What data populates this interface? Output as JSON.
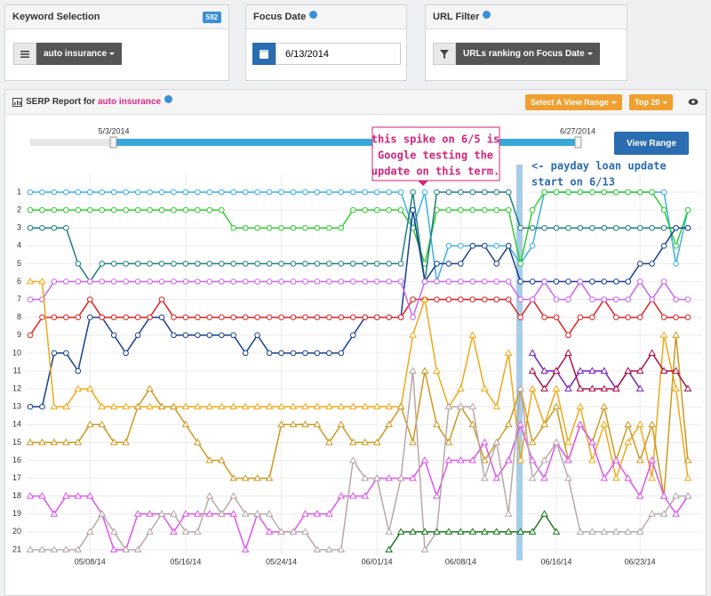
{
  "keyword_panel": {
    "title": "Keyword Selection",
    "count": 592,
    "keyword": "auto insurance"
  },
  "focus_panel": {
    "title": "Focus Date",
    "date": "6/13/2014"
  },
  "url_panel": {
    "title": "URL Filter",
    "filter": "URLs ranking on Focus Date"
  },
  "report": {
    "title_prefix": "SERP Report for",
    "keyword": "auto insurance",
    "range_button": "Select A View Range",
    "top_button": "Top 20",
    "range_start": "5/3/2014",
    "range_end": "6/27/2014",
    "apply_button": "View Range"
  },
  "chart_data": {
    "type": "line",
    "categories": [
      null,
      null,
      null,
      null,
      null,
      "05/08/14",
      null,
      null,
      null,
      null,
      null,
      null,
      null,
      "05/16/14",
      null,
      null,
      null,
      null,
      null,
      null,
      null,
      "05/24/14",
      null,
      null,
      null,
      null,
      null,
      null,
      null,
      "06/01/14",
      null,
      null,
      null,
      null,
      null,
      null,
      "06/08/14",
      null,
      null,
      null,
      null,
      null,
      null,
      null,
      "06/16/14",
      null,
      null,
      null,
      null,
      null,
      null,
      "06/23/14",
      null,
      null,
      null,
      null
    ],
    "ylim": [
      21.5,
      0.5
    ],
    "yticks": [
      1,
      2,
      3,
      4,
      5,
      6,
      7,
      8,
      9,
      10,
      11,
      12,
      13,
      14,
      15,
      16,
      17,
      18,
      19,
      20,
      21
    ],
    "grid": true,
    "annotations": [
      {
        "lines": [
          "this spike on 6/5 is",
          "Google testing the",
          "update on this term."
        ],
        "color": "#d0257a"
      },
      {
        "lines": [
          "<- payday loan update",
          "start on 6/13"
        ],
        "color": "#2a6db0"
      }
    ],
    "series": [
      {
        "color": "#3ab0e2",
        "marker": "circle",
        "values": [
          1,
          1,
          1,
          1,
          1,
          1,
          1,
          1,
          1,
          1,
          1,
          1,
          1,
          1,
          1,
          1,
          1,
          1,
          1,
          1,
          1,
          1,
          1,
          1,
          1,
          1,
          1,
          1,
          1,
          1,
          1,
          1,
          3,
          1,
          6,
          4,
          4,
          4,
          4,
          4,
          4,
          5,
          4,
          1,
          1,
          1,
          1,
          1,
          1,
          1,
          1,
          1,
          1,
          1,
          5,
          2
        ]
      },
      {
        "color": "#33cc33",
        "marker": "circle",
        "values": [
          2,
          2,
          2,
          2,
          2,
          2,
          2,
          2,
          2,
          2,
          2,
          2,
          2,
          2,
          2,
          2,
          2,
          3,
          3,
          3,
          3,
          3,
          3,
          3,
          3,
          3,
          3,
          2,
          2,
          2,
          2,
          2,
          3,
          5,
          2,
          2,
          2,
          2,
          2,
          2,
          2,
          5,
          2,
          1,
          1,
          1,
          1,
          1,
          1,
          1,
          1,
          1,
          1,
          2,
          4,
          2
        ]
      },
      {
        "color": "#1f7f7f",
        "marker": "circle",
        "values": [
          3,
          3,
          3,
          3,
          5,
          6,
          5,
          5,
          5,
          5,
          5,
          5,
          5,
          5,
          5,
          5,
          5,
          5,
          5,
          5,
          5,
          5,
          5,
          5,
          5,
          5,
          5,
          5,
          5,
          5,
          5,
          5,
          1,
          6,
          1,
          1,
          1,
          1,
          1,
          1,
          1,
          3,
          3,
          3,
          3,
          3,
          3,
          3,
          3,
          3,
          3,
          3,
          3,
          3,
          3,
          3
        ]
      },
      {
        "color": "#1a3f8f",
        "marker": "circle",
        "values": [
          13,
          13,
          10,
          10,
          11,
          8,
          8,
          9,
          10,
          9,
          8,
          8,
          9,
          9,
          9,
          9,
          9,
          9,
          10,
          9,
          10,
          10,
          10,
          10,
          10,
          10,
          10,
          9,
          8,
          8,
          8,
          8,
          2,
          6,
          5,
          5,
          5,
          4,
          4,
          5,
          4,
          6,
          6,
          6,
          6,
          6,
          6,
          6,
          6,
          6,
          6,
          5,
          5,
          4,
          3,
          3
        ]
      },
      {
        "color": "#e02020",
        "marker": "circle",
        "values": [
          9,
          8,
          8,
          8,
          8,
          7,
          8,
          8,
          8,
          8,
          8,
          7,
          8,
          8,
          8,
          8,
          8,
          8,
          8,
          8,
          8,
          8,
          8,
          8,
          8,
          8,
          8,
          8,
          8,
          8,
          8,
          8,
          7,
          7,
          7,
          7,
          7,
          7,
          7,
          7,
          7,
          8,
          7,
          8,
          8,
          9,
          8,
          8,
          7,
          8,
          8,
          8,
          7,
          8,
          8,
          8
        ]
      },
      {
        "color": "#cc66ee",
        "marker": "circle",
        "values": [
          7,
          7,
          6,
          6,
          6,
          6,
          6,
          6,
          6,
          6,
          6,
          6,
          6,
          6,
          6,
          6,
          6,
          6,
          6,
          6,
          6,
          6,
          6,
          6,
          6,
          6,
          6,
          6,
          6,
          6,
          6,
          6,
          8,
          6,
          6,
          6,
          6,
          6,
          6,
          6,
          6,
          7,
          7,
          6,
          7,
          7,
          6,
          7,
          7,
          7,
          7,
          6,
          7,
          6,
          7,
          7
        ]
      },
      {
        "color": "#f0a818",
        "marker": "triangle",
        "values": [
          6,
          6,
          13,
          13,
          12,
          12,
          13,
          13,
          13,
          13,
          13,
          13,
          13,
          13,
          13,
          13,
          13,
          13,
          13,
          13,
          13,
          13,
          13,
          13,
          13,
          13,
          13,
          13,
          13,
          13,
          13,
          13,
          9,
          7,
          11,
          13,
          12,
          9,
          12,
          13,
          10,
          16,
          12,
          14,
          12,
          15,
          13,
          16,
          14,
          17,
          15,
          14,
          17,
          9,
          12,
          17
        ]
      },
      {
        "color": "#cc9920",
        "marker": "triangle",
        "values": [
          15,
          15,
          15,
          15,
          15,
          14,
          14,
          15,
          15,
          13,
          12,
          13,
          13,
          14,
          15,
          16,
          16,
          17,
          17,
          17,
          17,
          14,
          14,
          14,
          14,
          15,
          14,
          15,
          15,
          15,
          14,
          13,
          15,
          11,
          14,
          15,
          13,
          14,
          16,
          15,
          14,
          12,
          15,
          14,
          13,
          16,
          14,
          15,
          13,
          16,
          14,
          16,
          14,
          18,
          9,
          16
        ]
      },
      {
        "color": "#dd55ee",
        "marker": "triangle",
        "values": [
          18,
          18,
          19,
          18,
          18,
          18,
          19,
          21,
          21,
          19,
          19,
          19,
          20,
          19,
          19,
          19,
          19,
          19,
          21,
          19,
          20,
          20,
          20,
          19,
          19,
          19,
          18,
          18,
          18,
          17,
          17,
          17,
          17,
          16,
          18,
          16,
          16,
          16,
          15,
          17,
          16,
          14,
          16,
          17,
          15,
          16,
          14,
          15,
          17,
          16,
          17,
          18,
          16,
          18,
          19,
          18
        ]
      },
      {
        "color": "#b8a8a8",
        "marker": "triangle",
        "values": [
          21,
          21,
          21,
          21,
          21,
          20,
          19,
          20,
          21,
          21,
          20,
          19,
          19,
          20,
          20,
          18,
          19,
          18,
          19,
          19,
          19,
          20,
          20,
          20,
          21,
          21,
          21,
          16,
          17,
          17,
          20,
          17,
          11,
          21,
          20,
          13,
          13,
          13,
          17,
          15,
          19,
          12,
          17,
          16,
          15,
          17,
          20,
          20,
          20,
          20,
          20,
          20,
          19,
          19,
          18,
          18
        ]
      },
      {
        "color": "#1a7a1a",
        "marker": "triangle",
        "values": [
          null,
          null,
          null,
          null,
          null,
          null,
          null,
          null,
          null,
          null,
          null,
          null,
          null,
          null,
          null,
          null,
          null,
          null,
          null,
          null,
          null,
          null,
          null,
          null,
          null,
          null,
          null,
          null,
          null,
          null,
          21,
          20,
          20,
          20,
          20,
          20,
          20,
          20,
          20,
          20,
          20,
          20,
          20,
          19,
          20,
          null,
          null,
          null,
          null,
          null,
          null,
          null,
          null,
          null,
          null,
          null
        ]
      },
      {
        "color": "#7722bb",
        "marker": "triangle",
        "values": [
          null,
          null,
          null,
          null,
          null,
          null,
          null,
          null,
          null,
          null,
          null,
          null,
          null,
          null,
          null,
          null,
          null,
          null,
          null,
          null,
          null,
          null,
          null,
          null,
          null,
          null,
          null,
          null,
          null,
          null,
          null,
          null,
          null,
          null,
          null,
          null,
          null,
          null,
          null,
          null,
          null,
          null,
          10,
          11,
          11,
          12,
          11,
          11,
          11,
          12,
          11,
          12,
          null,
          null,
          null,
          null
        ]
      },
      {
        "color": "#aa1144",
        "marker": "triangle",
        "values": [
          null,
          null,
          null,
          null,
          null,
          null,
          null,
          null,
          null,
          null,
          null,
          null,
          null,
          null,
          null,
          null,
          null,
          null,
          null,
          null,
          null,
          null,
          null,
          null,
          null,
          null,
          null,
          null,
          null,
          null,
          null,
          null,
          null,
          null,
          null,
          null,
          null,
          null,
          null,
          null,
          null,
          null,
          11,
          12,
          11,
          10,
          12,
          12,
          12,
          12,
          11,
          11,
          10,
          11,
          11,
          12
        ]
      }
    ]
  }
}
